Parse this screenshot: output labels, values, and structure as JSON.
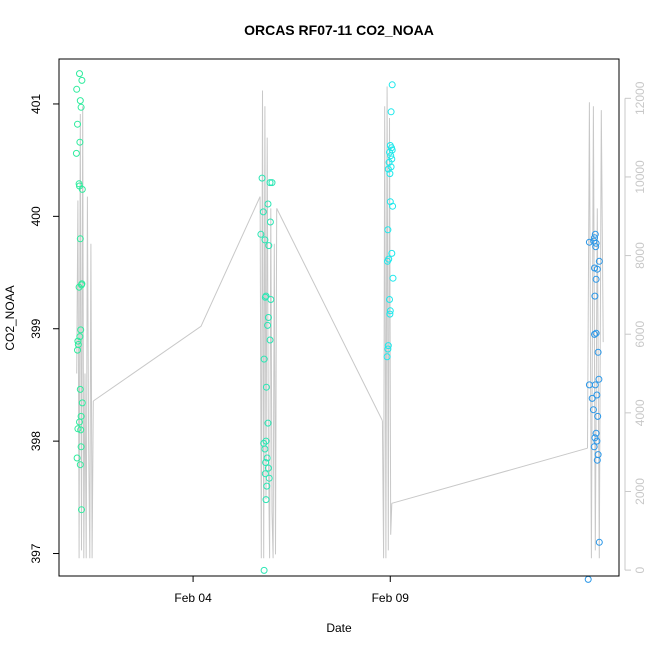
{
  "chart_data": {
    "type": "scatter",
    "title": "ORCAS RF07-11 CO2_NOAA",
    "xlabel": "Date",
    "ylabel": "CO2_NOAA",
    "x_ticks": [
      {
        "label": "Feb 04",
        "day": 4
      },
      {
        "label": "Feb 09",
        "day": 9
      }
    ],
    "xlim_days": [
      0.6,
      14.8
    ],
    "ylim": [
      396.8,
      401.4
    ],
    "y_ticks": [
      397,
      398,
      399,
      400,
      401
    ],
    "y2lim": [
      -150,
      13000
    ],
    "y2_ticks": [
      0,
      2000,
      4000,
      6000,
      8000,
      10000,
      12000
    ],
    "grid": false,
    "legend": "none",
    "secondary_series": {
      "name": "altitude",
      "color": "#c8c8c8",
      "flights": [
        {
          "x": [
            1.05,
            1.08,
            1.11,
            1.14,
            1.17,
            1.2,
            1.23,
            1.26,
            1.29,
            1.32,
            1.35,
            1.38,
            1.41,
            1.44,
            1.47
          ],
          "y": [
            5000,
            9400,
            300,
            11600,
            500,
            11800,
            300,
            5000,
            300,
            9500,
            3300,
            300,
            8300,
            300,
            4300
          ]
        },
        {
          "x": [
            1.47,
            4.2,
            5.7
          ],
          "y": [
            4300,
            6200,
            9500
          ]
        },
        {
          "x": [
            5.7,
            5.73,
            5.76,
            5.79,
            5.82,
            5.85,
            5.88,
            5.91,
            5.94,
            5.97,
            6.0,
            6.03,
            6.06,
            6.09,
            6.12
          ],
          "y": [
            9500,
            300,
            12200,
            300,
            11800,
            1800,
            11000,
            3000,
            300,
            9200,
            1500,
            300,
            8300,
            400,
            9200
          ]
        },
        {
          "x": [
            6.12,
            8.8
          ],
          "y": [
            9200,
            3800
          ]
        },
        {
          "x": [
            8.8,
            8.83,
            8.86,
            8.89,
            8.92,
            8.95,
            8.98,
            9.01,
            9.04
          ],
          "y": [
            3800,
            300,
            11800,
            300,
            12300,
            500,
            11500,
            900,
            1700
          ]
        },
        {
          "x": [
            9.04,
            14.0
          ],
          "y": [
            1700,
            3100
          ]
        },
        {
          "x": [
            14.0,
            14.05,
            14.1,
            14.15,
            14.2,
            14.25,
            14.3,
            14.35,
            14.4
          ],
          "y": [
            3100,
            11900,
            300,
            11800,
            500,
            9200,
            300,
            11700,
            5800
          ]
        }
      ]
    },
    "series": [
      {
        "color": "#2fec9e",
        "points": [
          {
            "x": 1.05,
            "y": 401.13
          },
          {
            "x": 1.12,
            "y": 401.27
          },
          {
            "x": 1.18,
            "y": 401.21
          },
          {
            "x": 1.14,
            "y": 401.03
          },
          {
            "x": 1.16,
            "y": 400.97
          },
          {
            "x": 1.07,
            "y": 400.82
          },
          {
            "x": 1.13,
            "y": 400.66
          },
          {
            "x": 1.04,
            "y": 400.56
          },
          {
            "x": 1.11,
            "y": 400.29
          },
          {
            "x": 1.12,
            "y": 400.27
          },
          {
            "x": 1.19,
            "y": 400.24
          },
          {
            "x": 1.14,
            "y": 399.8
          },
          {
            "x": 1.18,
            "y": 399.4
          },
          {
            "x": 1.17,
            "y": 399.39
          },
          {
            "x": 1.11,
            "y": 399.37
          },
          {
            "x": 1.15,
            "y": 398.99
          },
          {
            "x": 1.13,
            "y": 398.93
          },
          {
            "x": 1.08,
            "y": 398.89
          },
          {
            "x": 1.09,
            "y": 398.86
          },
          {
            "x": 1.07,
            "y": 398.81
          },
          {
            "x": 1.14,
            "y": 398.46
          },
          {
            "x": 1.19,
            "y": 398.34
          },
          {
            "x": 1.16,
            "y": 398.22
          },
          {
            "x": 1.12,
            "y": 398.17
          },
          {
            "x": 1.08,
            "y": 398.11
          },
          {
            "x": 1.15,
            "y": 398.1
          },
          {
            "x": 1.16,
            "y": 397.95
          },
          {
            "x": 1.06,
            "y": 397.85
          },
          {
            "x": 1.14,
            "y": 397.79
          },
          {
            "x": 1.17,
            "y": 397.39
          }
        ]
      },
      {
        "color": "#2be6b4",
        "points": [
          {
            "x": 5.75,
            "y": 400.34
          },
          {
            "x": 5.95,
            "y": 400.3
          },
          {
            "x": 6.0,
            "y": 400.3
          },
          {
            "x": 5.9,
            "y": 400.11
          },
          {
            "x": 5.78,
            "y": 400.04
          },
          {
            "x": 5.96,
            "y": 399.95
          },
          {
            "x": 5.72,
            "y": 399.84
          },
          {
            "x": 5.82,
            "y": 399.79
          },
          {
            "x": 5.92,
            "y": 399.74
          },
          {
            "x": 5.85,
            "y": 399.29
          },
          {
            "x": 5.83,
            "y": 399.28
          },
          {
            "x": 5.97,
            "y": 399.26
          },
          {
            "x": 5.91,
            "y": 399.1
          },
          {
            "x": 5.89,
            "y": 399.03
          },
          {
            "x": 5.95,
            "y": 398.9
          },
          {
            "x": 5.8,
            "y": 398.73
          },
          {
            "x": 5.86,
            "y": 398.48
          },
          {
            "x": 5.9,
            "y": 398.16
          },
          {
            "x": 5.85,
            "y": 398.0
          },
          {
            "x": 5.79,
            "y": 397.98
          },
          {
            "x": 5.82,
            "y": 397.93
          },
          {
            "x": 5.88,
            "y": 397.85
          },
          {
            "x": 5.84,
            "y": 397.81
          },
          {
            "x": 5.91,
            "y": 397.76
          },
          {
            "x": 5.83,
            "y": 397.71
          },
          {
            "x": 5.93,
            "y": 397.67
          },
          {
            "x": 5.87,
            "y": 397.6
          },
          {
            "x": 5.85,
            "y": 397.48
          },
          {
            "x": 5.8,
            "y": 396.85
          }
        ]
      },
      {
        "color": "#1ee8ec",
        "points": [
          {
            "x": 9.05,
            "y": 401.17
          },
          {
            "x": 9.02,
            "y": 400.93
          },
          {
            "x": 9.0,
            "y": 400.63
          },
          {
            "x": 9.03,
            "y": 400.61
          },
          {
            "x": 9.05,
            "y": 400.59
          },
          {
            "x": 8.98,
            "y": 400.57
          },
          {
            "x": 9.01,
            "y": 400.54
          },
          {
            "x": 9.04,
            "y": 400.51
          },
          {
            "x": 8.97,
            "y": 400.48
          },
          {
            "x": 9.02,
            "y": 400.44
          },
          {
            "x": 8.95,
            "y": 400.42
          },
          {
            "x": 8.99,
            "y": 400.38
          },
          {
            "x": 9.0,
            "y": 400.13
          },
          {
            "x": 9.06,
            "y": 400.09
          },
          {
            "x": 8.94,
            "y": 399.88
          },
          {
            "x": 9.04,
            "y": 399.67
          },
          {
            "x": 8.96,
            "y": 399.62
          },
          {
            "x": 8.93,
            "y": 399.6
          },
          {
            "x": 9.07,
            "y": 399.45
          },
          {
            "x": 8.98,
            "y": 399.26
          },
          {
            "x": 9.0,
            "y": 399.16
          },
          {
            "x": 8.99,
            "y": 399.13
          },
          {
            "x": 8.95,
            "y": 398.85
          },
          {
            "x": 8.94,
            "y": 398.82
          },
          {
            "x": 8.92,
            "y": 398.75
          }
        ]
      },
      {
        "color": "#2a97e8",
        "points": [
          {
            "x": 14.2,
            "y": 399.84
          },
          {
            "x": 14.18,
            "y": 399.81
          },
          {
            "x": 14.16,
            "y": 399.78
          },
          {
            "x": 14.22,
            "y": 399.76
          },
          {
            "x": 14.05,
            "y": 399.77
          },
          {
            "x": 14.21,
            "y": 399.73
          },
          {
            "x": 14.3,
            "y": 399.6
          },
          {
            "x": 14.18,
            "y": 399.54
          },
          {
            "x": 14.25,
            "y": 399.53
          },
          {
            "x": 14.22,
            "y": 399.44
          },
          {
            "x": 14.19,
            "y": 399.29
          },
          {
            "x": 14.22,
            "y": 398.96
          },
          {
            "x": 14.18,
            "y": 398.95
          },
          {
            "x": 14.27,
            "y": 398.79
          },
          {
            "x": 14.29,
            "y": 398.55
          },
          {
            "x": 14.2,
            "y": 398.5
          },
          {
            "x": 14.05,
            "y": 398.5
          },
          {
            "x": 14.24,
            "y": 398.41
          },
          {
            "x": 14.12,
            "y": 398.38
          },
          {
            "x": 14.15,
            "y": 398.28
          },
          {
            "x": 14.26,
            "y": 398.22
          },
          {
            "x": 14.22,
            "y": 398.07
          },
          {
            "x": 14.19,
            "y": 398.03
          },
          {
            "x": 14.24,
            "y": 398.0
          },
          {
            "x": 14.17,
            "y": 397.95
          },
          {
            "x": 14.27,
            "y": 397.88
          },
          {
            "x": 14.25,
            "y": 397.83
          },
          {
            "x": 14.3,
            "y": 397.1
          },
          {
            "x": 14.02,
            "y": 396.77
          }
        ]
      }
    ]
  }
}
